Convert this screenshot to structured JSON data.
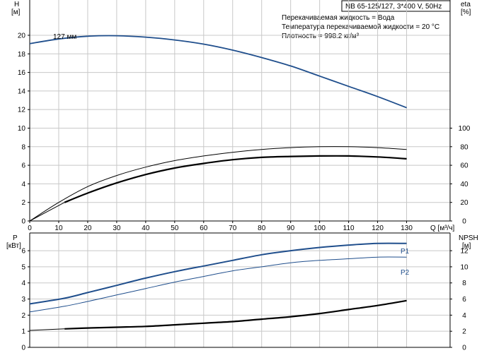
{
  "header": {
    "title": "NB 65-125/127, 3*400 V, 50Hz"
  },
  "notes": [
    "Перекачиваемая жидкость = Вода",
    "Температура перекачиваемой жидкости = 20 °C",
    "Плотность = 998.2 кг/м³"
  ],
  "colors": {
    "blue": "#1f4e8c",
    "black": "#000000",
    "grid": "#c8c8c8"
  },
  "chart_data": [
    {
      "type": "line",
      "name": "head-efficiency",
      "x_axis": {
        "label": "Q [м³/ч]",
        "range": [
          0,
          145
        ],
        "ticks": [
          0,
          10,
          20,
          30,
          40,
          50,
          60,
          70,
          80,
          90,
          100,
          110,
          120,
          130
        ]
      },
      "y_left": {
        "label_top": "H",
        "label_unit": "[м]",
        "range": [
          0,
          23.8
        ],
        "ticks": [
          0,
          2,
          4,
          6,
          8,
          10,
          12,
          14,
          16,
          18,
          20
        ]
      },
      "y_right": {
        "label_top": "eta",
        "label_unit": "[%]",
        "ticks": [
          0,
          20,
          40,
          60,
          80,
          100
        ],
        "scale_factor": 10
      },
      "grid": true,
      "series": [
        {
          "name": "127 мм",
          "axis": "left",
          "color": "#1f4e8c",
          "width": 1.8,
          "x": [
            0,
            10,
            20,
            30,
            40,
            50,
            60,
            70,
            80,
            90,
            100,
            110,
            120,
            130
          ],
          "y": [
            19.1,
            19.6,
            19.9,
            19.95,
            19.8,
            19.5,
            19.05,
            18.4,
            17.6,
            16.7,
            15.6,
            14.5,
            13.4,
            12.2
          ]
        },
        {
          "name": "",
          "axis": "right",
          "color": "#000000",
          "width": 1.0,
          "x": [
            0,
            10,
            20,
            30,
            40,
            50,
            60,
            70,
            80,
            90,
            100,
            110,
            120,
            130
          ],
          "y": [
            0,
            20,
            37,
            49,
            58,
            65,
            70,
            74,
            77,
            79,
            80,
            80,
            79,
            77
          ]
        },
        {
          "name": "",
          "axis": "right",
          "color": "#000000",
          "width": 2.2,
          "x": [
            12,
            20,
            30,
            40,
            50,
            60,
            70,
            80,
            90,
            100,
            110,
            120,
            130
          ],
          "y": [
            20,
            30,
            41,
            50,
            57,
            62,
            66,
            68.5,
            69.5,
            70,
            70,
            69,
            67
          ]
        },
        {
          "name": "",
          "axis": "right",
          "color": "#000000",
          "width": 1.0,
          "x": [
            0,
            12
          ],
          "y": [
            0,
            20
          ]
        }
      ]
    },
    {
      "type": "line",
      "name": "power-npsh",
      "x_axis": {
        "range": [
          0,
          145
        ]
      },
      "y_left": {
        "label_top": "P",
        "label_unit": "[кВт]",
        "range": [
          0,
          7.1
        ],
        "ticks": [
          0,
          1,
          2,
          3,
          4,
          5,
          6
        ]
      },
      "y_right": {
        "label_top": "NPSH",
        "label_unit": "[м]",
        "ticks": [
          0,
          2,
          4,
          6,
          8,
          10,
          12
        ],
        "scale_factor": 2
      },
      "grid": true,
      "series": [
        {
          "name": "P1",
          "axis": "left",
          "color": "#1f4e8c",
          "width": 2.0,
          "x": [
            0,
            12,
            20,
            30,
            40,
            50,
            60,
            70,
            80,
            90,
            100,
            110,
            120,
            130
          ],
          "y": [
            2.7,
            3.05,
            3.4,
            3.85,
            4.3,
            4.7,
            5.05,
            5.4,
            5.75,
            6.0,
            6.2,
            6.35,
            6.45,
            6.45
          ]
        },
        {
          "name": "P2",
          "axis": "left",
          "color": "#1f4e8c",
          "width": 1.0,
          "x": [
            0,
            12,
            20,
            30,
            40,
            50,
            60,
            70,
            80,
            90,
            100,
            110,
            120,
            130
          ],
          "y": [
            2.2,
            2.55,
            2.85,
            3.25,
            3.65,
            4.05,
            4.4,
            4.75,
            5.0,
            5.25,
            5.4,
            5.5,
            5.6,
            5.6
          ]
        },
        {
          "name": "",
          "axis": "left",
          "color": "#000000",
          "width": 2.2,
          "x": [
            12,
            20,
            30,
            40,
            50,
            60,
            70,
            80,
            90,
            100,
            110,
            120,
            130
          ],
          "y": [
            1.15,
            1.2,
            1.25,
            1.3,
            1.4,
            1.5,
            1.6,
            1.75,
            1.9,
            2.1,
            2.35,
            2.6,
            2.9
          ]
        },
        {
          "name": "",
          "axis": "left",
          "color": "#000000",
          "width": 1.0,
          "x": [
            0,
            12
          ],
          "y": [
            1.05,
            1.15
          ]
        }
      ]
    }
  ]
}
